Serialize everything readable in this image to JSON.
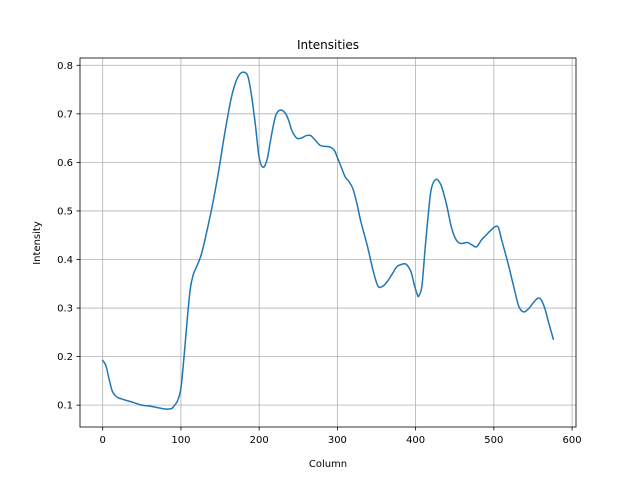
{
  "chart_data": {
    "type": "line",
    "title": "Intensities",
    "xlabel": "Column",
    "ylabel": "Intensity",
    "xlim": [
      -29,
      605
    ],
    "ylim": [
      0.055,
      0.815
    ],
    "xticks": [
      0,
      100,
      200,
      300,
      400,
      500,
      600
    ],
    "yticks": [
      0.1,
      0.2,
      0.3,
      0.4,
      0.5,
      0.6,
      0.7,
      0.8
    ],
    "grid": true,
    "line_color": "#1f77b4",
    "series": [
      {
        "x": [
          0,
          4,
          8,
          12,
          16,
          20,
          30,
          40,
          50,
          60,
          70,
          80,
          88,
          92,
          96,
          100,
          104,
          108,
          112,
          116,
          120,
          126,
          132,
          140,
          148,
          156,
          164,
          170,
          176,
          182,
          186,
          190,
          195,
          200,
          205,
          210,
          214,
          218,
          222,
          228,
          234,
          238,
          242,
          248,
          254,
          260,
          266,
          272,
          278,
          284,
          290,
          296,
          300,
          305,
          310,
          315,
          320,
          325,
          330,
          338,
          346,
          352,
          358,
          364,
          370,
          376,
          382,
          388,
          394,
          398,
          402,
          404,
          408,
          412,
          416,
          420,
          426,
          432,
          436,
          440,
          446,
          452,
          458,
          466,
          472,
          478,
          484,
          490,
          496,
          502,
          506,
          510,
          516,
          520,
          526,
          532,
          538,
          544,
          550,
          556,
          560,
          565,
          570,
          576
        ],
        "y": [
          0.192,
          0.182,
          0.155,
          0.13,
          0.12,
          0.115,
          0.11,
          0.105,
          0.1,
          0.098,
          0.095,
          0.092,
          0.093,
          0.1,
          0.11,
          0.135,
          0.2,
          0.275,
          0.34,
          0.37,
          0.385,
          0.41,
          0.45,
          0.51,
          0.58,
          0.66,
          0.73,
          0.765,
          0.783,
          0.785,
          0.775,
          0.74,
          0.68,
          0.61,
          0.59,
          0.605,
          0.64,
          0.675,
          0.7,
          0.708,
          0.7,
          0.685,
          0.665,
          0.65,
          0.65,
          0.655,
          0.655,
          0.645,
          0.635,
          0.633,
          0.632,
          0.625,
          0.61,
          0.59,
          0.57,
          0.56,
          0.545,
          0.515,
          0.478,
          0.43,
          0.375,
          0.345,
          0.345,
          0.355,
          0.37,
          0.385,
          0.39,
          0.39,
          0.375,
          0.35,
          0.328,
          0.325,
          0.345,
          0.42,
          0.49,
          0.545,
          0.565,
          0.555,
          0.535,
          0.51,
          0.465,
          0.44,
          0.433,
          0.435,
          0.43,
          0.426,
          0.44,
          0.45,
          0.46,
          0.468,
          0.465,
          0.44,
          0.405,
          0.38,
          0.34,
          0.303,
          0.292,
          0.298,
          0.31,
          0.32,
          0.318,
          0.3,
          0.27,
          0.236
        ]
      }
    ]
  }
}
